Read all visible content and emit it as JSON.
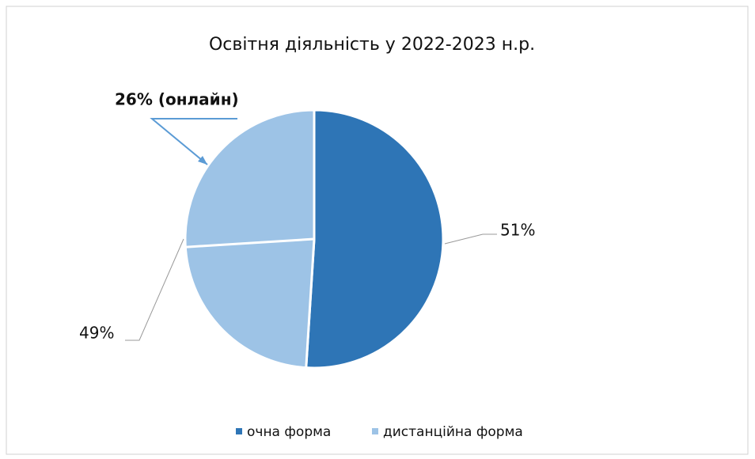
{
  "chart_data": {
    "type": "pie",
    "title": "Освітня діяльність у 2022-2023 н.р.",
    "categories": [
      "очна форма",
      "дистанційна форма"
    ],
    "values": [
      51,
      49
    ],
    "value_labels": [
      "51%",
      "49%"
    ],
    "colors": [
      "#2e75b6",
      "#9dc3e6"
    ],
    "annotations": [
      {
        "text": "26% (онлайн)",
        "value": 26
      }
    ],
    "legend": "bottom"
  }
}
